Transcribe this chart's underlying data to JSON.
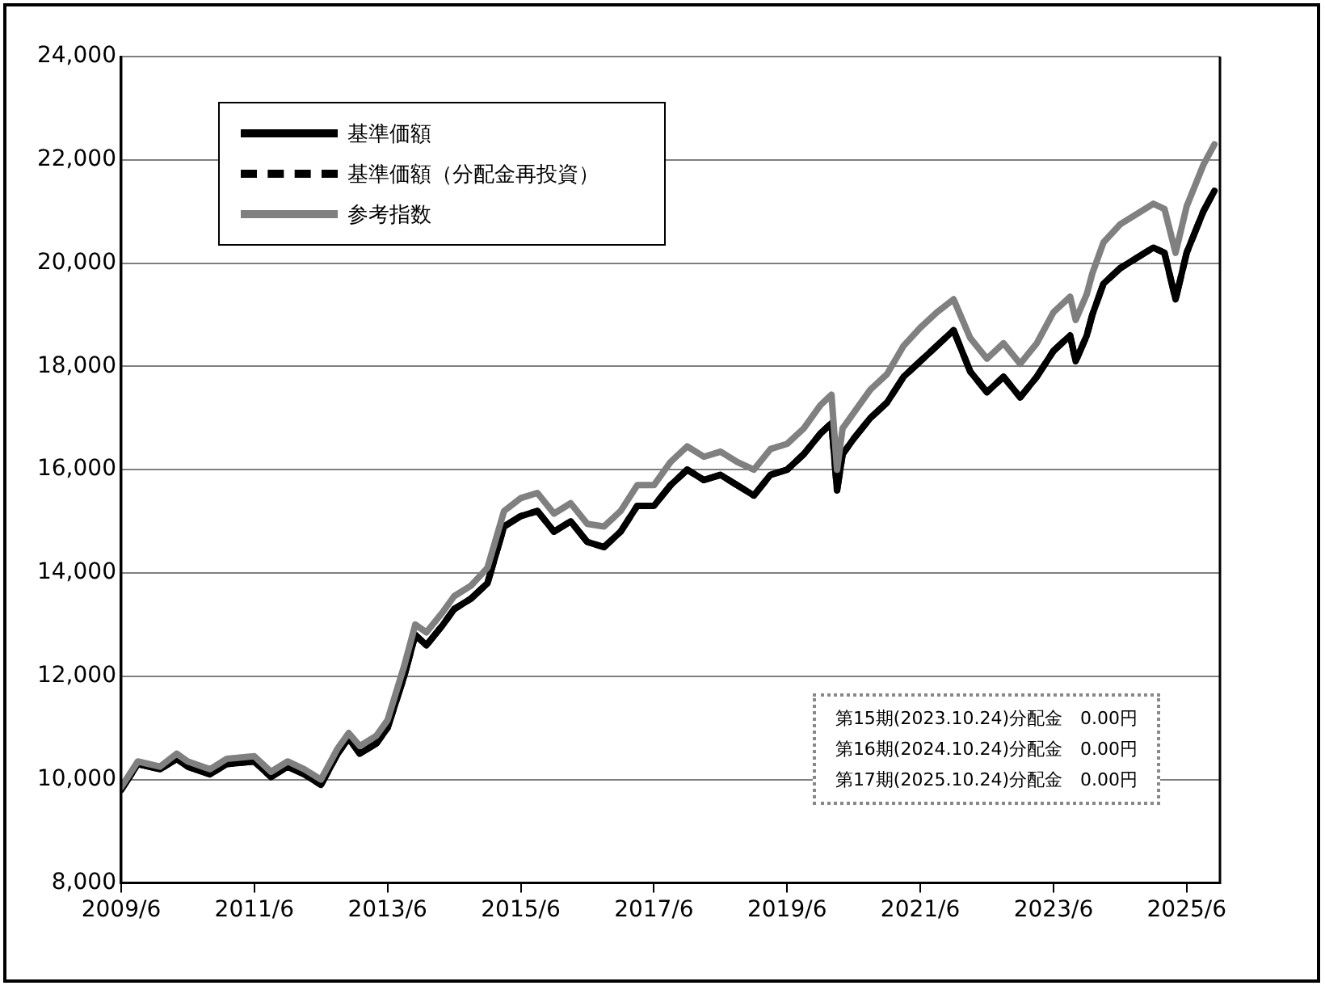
{
  "chart_data": {
    "type": "line",
    "x": [
      "2009-06",
      "2009-09",
      "2010-01",
      "2010-04",
      "2010-06",
      "2010-10",
      "2011-01",
      "2011-06",
      "2011-09",
      "2011-12",
      "2012-03",
      "2012-06",
      "2012-09",
      "2012-11",
      "2013-01",
      "2013-04",
      "2013-06",
      "2013-09",
      "2013-11",
      "2014-01",
      "2014-04",
      "2014-06",
      "2014-09",
      "2014-12",
      "2015-03",
      "2015-06",
      "2015-09",
      "2015-12",
      "2016-03",
      "2016-06",
      "2016-09",
      "2016-12",
      "2017-03",
      "2017-06",
      "2017-09",
      "2017-12",
      "2018-03",
      "2018-06",
      "2018-09",
      "2018-12",
      "2019-03",
      "2019-06",
      "2019-09",
      "2019-12",
      "2020-02",
      "2020-03",
      "2020-04",
      "2020-06",
      "2020-09",
      "2020-12",
      "2021-03",
      "2021-06",
      "2021-09",
      "2021-12",
      "2022-03",
      "2022-06",
      "2022-09",
      "2022-12",
      "2023-03",
      "2023-06",
      "2023-09",
      "2023-10",
      "2023-12",
      "2024-01",
      "2024-03",
      "2024-06",
      "2024-09",
      "2024-12",
      "2025-02",
      "2025-04",
      "2025-06",
      "2025-09",
      "2025-11"
    ],
    "series": [
      {
        "name": "基準価額",
        "color": "#000000",
        "line_style": "solid",
        "values": [
          9800,
          10300,
          10200,
          10400,
          10250,
          10100,
          10300,
          10350,
          10050,
          10250,
          10100,
          9900,
          10500,
          10800,
          10500,
          10700,
          11000,
          12000,
          12800,
          12600,
          13000,
          13300,
          13500,
          13800,
          14900,
          15100,
          15200,
          14800,
          15000,
          14600,
          14500,
          14800,
          15300,
          15300,
          15700,
          16000,
          15800,
          15900,
          15700,
          15500,
          15900,
          16000,
          16300,
          16700,
          16900,
          15600,
          16300,
          16600,
          17000,
          17300,
          17800,
          18100,
          18400,
          18700,
          17900,
          17500,
          17800,
          17400,
          17800,
          18300,
          18600,
          18100,
          18600,
          19000,
          19600,
          19900,
          20100,
          20300,
          20200,
          19300,
          20200,
          21000,
          21400
        ]
      },
      {
        "name": "基準価額（分配金再投資）",
        "color": "#000000",
        "line_style": "dashed",
        "values": [
          9800,
          10300,
          10200,
          10400,
          10250,
          10100,
          10300,
          10350,
          10050,
          10250,
          10100,
          9900,
          10500,
          10800,
          10500,
          10700,
          11000,
          12000,
          12800,
          12600,
          13000,
          13300,
          13500,
          13800,
          14900,
          15100,
          15200,
          14800,
          15000,
          14600,
          14500,
          14800,
          15300,
          15300,
          15700,
          16000,
          15800,
          15900,
          15700,
          15500,
          15900,
          16000,
          16300,
          16700,
          16900,
          15600,
          16300,
          16600,
          17000,
          17300,
          17800,
          18100,
          18400,
          18700,
          17900,
          17500,
          17800,
          17400,
          17800,
          18300,
          18600,
          18100,
          18600,
          19000,
          19600,
          19900,
          20100,
          20300,
          20200,
          19300,
          20200,
          21000,
          21400
        ]
      },
      {
        "name": "参考指数",
        "color": "#808080",
        "line_style": "solid",
        "values": [
          9850,
          10350,
          10250,
          10500,
          10350,
          10200,
          10400,
          10450,
          10150,
          10350,
          10200,
          10000,
          10600,
          10900,
          10650,
          10850,
          11150,
          12200,
          13000,
          12850,
          13250,
          13550,
          13750,
          14100,
          15200,
          15450,
          15550,
          15150,
          15350,
          14950,
          14900,
          15200,
          15700,
          15700,
          16150,
          16450,
          16250,
          16350,
          16150,
          16000,
          16400,
          16500,
          16800,
          17250,
          17450,
          16000,
          16800,
          17100,
          17550,
          17850,
          18400,
          18750,
          19050,
          19300,
          18550,
          18150,
          18450,
          18050,
          18450,
          19050,
          19350,
          18900,
          19400,
          19800,
          20400,
          20750,
          20950,
          21150,
          21050,
          20200,
          21100,
          21900,
          22300
        ]
      }
    ],
    "xlim": [
      "2009-06",
      "2025-12"
    ],
    "xticks": [
      {
        "value": "2009-06",
        "label": "2009/6"
      },
      {
        "value": "2011-06",
        "label": "2011/6"
      },
      {
        "value": "2013-06",
        "label": "2013/6"
      },
      {
        "value": "2015-06",
        "label": "2015/6"
      },
      {
        "value": "2017-06",
        "label": "2017/6"
      },
      {
        "value": "2019-06",
        "label": "2019/6"
      },
      {
        "value": "2021-06",
        "label": "2021/6"
      },
      {
        "value": "2023-06",
        "label": "2023/6"
      },
      {
        "value": "2025-06",
        "label": "2025/6"
      }
    ],
    "ylim": [
      8000,
      24000
    ],
    "yticks": [
      {
        "value": 8000,
        "label": "8,000"
      },
      {
        "value": 10000,
        "label": "10,000"
      },
      {
        "value": 12000,
        "label": "12,000"
      },
      {
        "value": 14000,
        "label": "14,000"
      },
      {
        "value": 16000,
        "label": "16,000"
      },
      {
        "value": 18000,
        "label": "18,000"
      },
      {
        "value": 20000,
        "label": "20,000"
      },
      {
        "value": 22000,
        "label": "22,000"
      },
      {
        "value": 24000,
        "label": "24,000"
      }
    ],
    "grid": "y",
    "legend": "top left",
    "annotations": [
      "第15期(2023.10.24)分配金　0.00円",
      "第16期(2024.10.24)分配金　0.00円",
      "第17期(2025.10.24)分配金　0.00円"
    ]
  }
}
